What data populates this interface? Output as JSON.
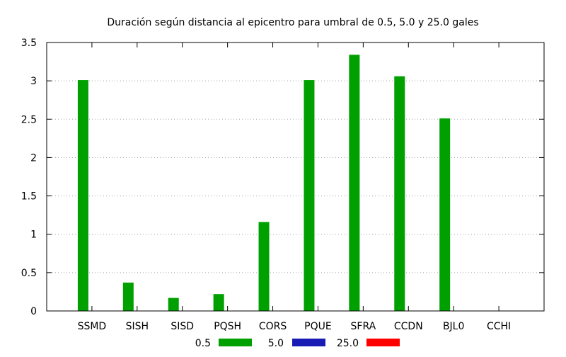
{
  "chart_data": {
    "type": "bar",
    "title": "Duración según distancia al epicentro para umbral de 0.5, 5.0 y 25.0 gales",
    "xlabel": "",
    "ylabel": "",
    "categories": [
      "SSMD",
      "SISH",
      "SISD",
      "PQSH",
      "CORS",
      "PQUE",
      "SFRA",
      "CCDN",
      "BJL0",
      "CCHI"
    ],
    "series": [
      {
        "name": "0.5",
        "color": "#00a000",
        "values": [
          3.01,
          0.37,
          0.17,
          0.22,
          1.16,
          3.01,
          3.34,
          3.06,
          2.51,
          0
        ]
      },
      {
        "name": "5.0",
        "color": "#1a1ab4",
        "values": [
          0,
          0,
          0,
          0,
          0,
          0,
          0,
          0,
          0,
          0
        ]
      },
      {
        "name": "25.0",
        "color": "#ff0000",
        "values": [
          0,
          0,
          0,
          0,
          0,
          0,
          0,
          0,
          0,
          0
        ]
      }
    ],
    "ylim": [
      0,
      3.5
    ],
    "yticks": [
      "0",
      "0.5",
      "1",
      "1.5",
      "2",
      "2.5",
      "3",
      "3.5"
    ],
    "grid": true,
    "legend_position": "bottom"
  }
}
